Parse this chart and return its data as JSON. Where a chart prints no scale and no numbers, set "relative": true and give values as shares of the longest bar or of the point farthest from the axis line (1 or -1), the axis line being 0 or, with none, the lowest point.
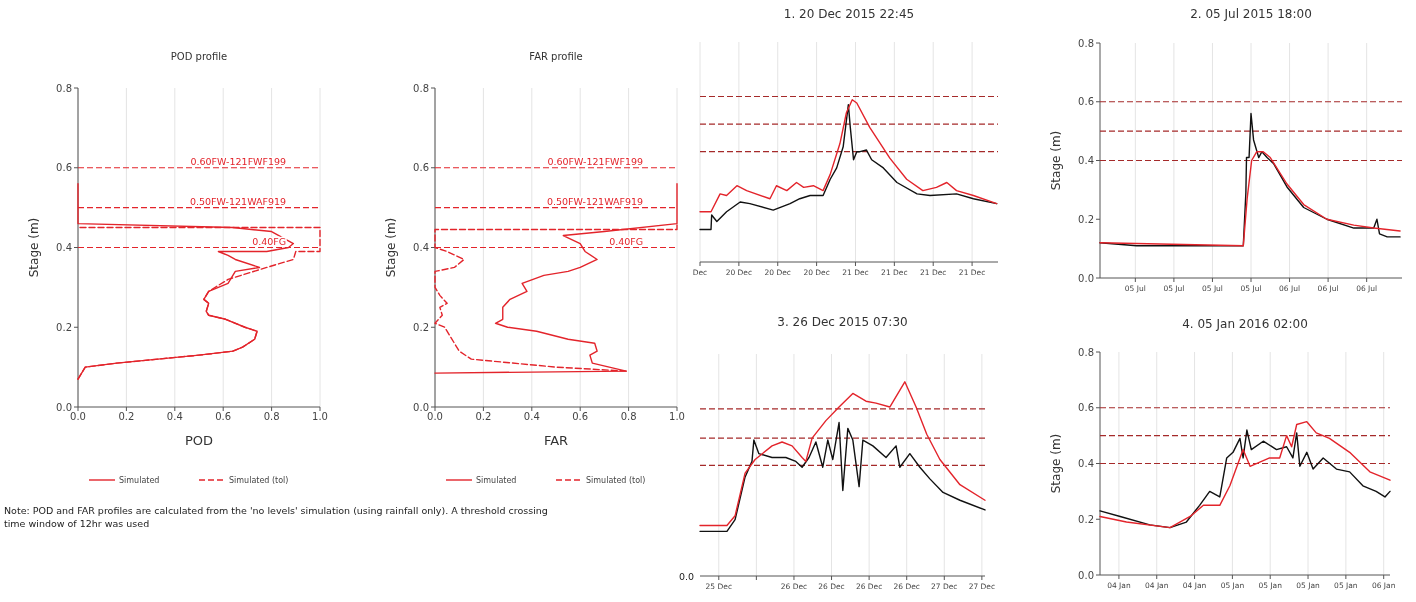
{
  "chart_data": [
    {
      "type": "line",
      "title": "POD profile",
      "xlabel": "POD",
      "ylabel": "Stage (m)",
      "xlim": [
        0,
        1
      ],
      "ylim": [
        0,
        0.8
      ],
      "xticks": [
        {
          "value": 0,
          "label": "0.0"
        },
        {
          "value": 0.2,
          "label": "0.2"
        },
        {
          "value": 0.4,
          "label": "0.4"
        },
        {
          "value": 0.6,
          "label": "0.6"
        },
        {
          "value": 0.8,
          "label": "0.8"
        },
        {
          "value": 1,
          "label": "1.0"
        }
      ],
      "yticks": [
        {
          "value": 0,
          "label": "0.0"
        },
        {
          "value": 0.2,
          "label": "0.2"
        },
        {
          "value": 0.4,
          "label": "0.4"
        },
        {
          "value": 0.6,
          "label": "0.6"
        },
        {
          "value": 0.8,
          "label": "0.8"
        }
      ],
      "grid": "x",
      "legend": "bottom",
      "ref_lines": [
        {
          "axis": "y",
          "value": 0.6,
          "label": "0.60FW-121FWF199",
          "color": "#e3242b",
          "line_style": "dashed"
        },
        {
          "axis": "y",
          "value": 0.5,
          "label": "0.50FW-121WAF919",
          "color": "#e3242b",
          "line_style": "dashed"
        },
        {
          "axis": "y",
          "value": 0.4,
          "label": "0.40FG",
          "color": "#e3242b",
          "line_style": "dashed"
        }
      ],
      "annotations": [
        "Note: POD and FAR profiles are calculated from the 'no levels' simulation (using rainfall only).  A threshold crossing time window of 12hr was used"
      ],
      "series": [
        {
          "name": "Simulated",
          "color": "#e3242b",
          "line_style": "solid",
          "x": [
            0,
            0.03,
            0.16,
            0.33,
            0.5,
            0.64,
            0.68,
            0.73,
            0.74,
            0.69,
            0.61,
            0.54,
            0.53,
            0.54,
            0.52,
            0.54,
            0.62,
            0.65,
            0.75,
            0.65,
            0.62,
            0.58,
            0.78,
            0.87,
            0.89,
            0.8,
            0.64,
            0,
            0
          ],
          "values": [
            0.07,
            0.1,
            0.11,
            0.12,
            0.13,
            0.14,
            0.15,
            0.17,
            0.19,
            0.2,
            0.22,
            0.23,
            0.24,
            0.26,
            0.27,
            0.29,
            0.31,
            0.34,
            0.35,
            0.37,
            0.38,
            0.39,
            0.39,
            0.4,
            0.41,
            0.44,
            0.45,
            0.46,
            0.56
          ]
        },
        {
          "name": "Simulated (tol)",
          "color": "#e3242b",
          "line_style": "dashed",
          "x": [
            0,
            0.03,
            0.16,
            0.33,
            0.5,
            0.64,
            0.68,
            0.73,
            0.74,
            0.69,
            0.61,
            0.54,
            0.53,
            0.54,
            0.52,
            0.54,
            0.62,
            0.78,
            0.89,
            0.9,
            1,
            1,
            0
          ],
          "values": [
            0.07,
            0.1,
            0.11,
            0.12,
            0.13,
            0.14,
            0.15,
            0.17,
            0.19,
            0.2,
            0.22,
            0.23,
            0.24,
            0.26,
            0.27,
            0.29,
            0.32,
            0.35,
            0.37,
            0.39,
            0.39,
            0.45,
            0.45
          ]
        }
      ]
    },
    {
      "type": "line",
      "title": "FAR profile",
      "xlabel": "FAR",
      "ylabel": "Stage (m)",
      "xlim": [
        0,
        1
      ],
      "ylim": [
        0,
        0.8
      ],
      "xticks": [
        {
          "value": 0,
          "label": "0.0"
        },
        {
          "value": 0.2,
          "label": "0.2"
        },
        {
          "value": 0.4,
          "label": "0.4"
        },
        {
          "value": 0.6,
          "label": "0.6"
        },
        {
          "value": 0.8,
          "label": "0.8"
        },
        {
          "value": 1,
          "label": "1.0"
        }
      ],
      "yticks": [
        {
          "value": 0,
          "label": "0.0"
        },
        {
          "value": 0.2,
          "label": "0.2"
        },
        {
          "value": 0.4,
          "label": "0.4"
        },
        {
          "value": 0.6,
          "label": "0.6"
        },
        {
          "value": 0.8,
          "label": "0.8"
        }
      ],
      "grid": "x",
      "legend": "bottom",
      "ref_lines": [
        {
          "axis": "y",
          "value": 0.6,
          "label": "0.60FW-121FWF199",
          "color": "#e3242b",
          "line_style": "dashed"
        },
        {
          "axis": "y",
          "value": 0.5,
          "label": "0.50FW-121WAF919",
          "color": "#e3242b",
          "line_style": "dashed"
        },
        {
          "axis": "y",
          "value": 0.4,
          "label": "0.40FG",
          "color": "#e3242b",
          "line_style": "dashed"
        }
      ],
      "series": [
        {
          "name": "Simulated",
          "color": "#e3242b",
          "line_style": "solid",
          "x": [
            0,
            0.79,
            0.72,
            0.65,
            0.64,
            0.67,
            0.66,
            0.55,
            0.42,
            0.3,
            0.25,
            0.28,
            0.28,
            0.31,
            0.38,
            0.36,
            0.45,
            0.55,
            0.6,
            0.67,
            0.62,
            0.6,
            0.53,
            0.7,
            1,
            1
          ],
          "values": [
            0.085,
            0.09,
            0.1,
            0.11,
            0.13,
            0.14,
            0.16,
            0.17,
            0.19,
            0.2,
            0.21,
            0.22,
            0.25,
            0.27,
            0.29,
            0.31,
            0.33,
            0.34,
            0.35,
            0.37,
            0.39,
            0.41,
            0.43,
            0.44,
            0.46,
            0.56
          ]
        },
        {
          "name": "Simulated (tol)",
          "color": "#e3242b",
          "line_style": "dashed",
          "x": [
            0.79,
            0.5,
            0.15,
            0.1,
            0.04,
            0,
            0.03,
            0.02,
            0.05,
            0.02,
            0,
            0,
            0.08,
            0.12,
            0.05,
            0,
            0,
            1,
            1
          ],
          "values": [
            0.09,
            0.1,
            0.12,
            0.14,
            0.2,
            0.21,
            0.23,
            0.25,
            0.26,
            0.28,
            0.3,
            0.34,
            0.35,
            0.37,
            0.39,
            0.4,
            0.445,
            0.445,
            0.46
          ]
        }
      ]
    },
    {
      "type": "line",
      "title": "1. 20 Dec 2015 22:45",
      "relative": true,
      "xlim": [
        "2015-12-20T00:00",
        "2015-12-21T22:00"
      ],
      "xticks": [
        {
          "value": "2015-12-20T00:00",
          "label": "Dec"
        },
        {
          "value": "2015-12-20T06:00",
          "label": "20 Dec"
        },
        {
          "value": "2015-12-20T12:00",
          "label": "20 Dec"
        },
        {
          "value": "2015-12-20T18:00",
          "label": "20 Dec"
        },
        {
          "value": "2015-12-21T00:00",
          "label": "21 Dec"
        },
        {
          "value": "2015-12-21T06:00",
          "label": "21 Dec"
        },
        {
          "value": "2015-12-21T12:00",
          "label": "21 Dec"
        },
        {
          "value": "2015-12-21T18:00",
          "label": "21 Dec"
        }
      ],
      "grid": "x",
      "ref_lines": [
        {
          "axis": "y",
          "value": 1.02,
          "color": "#a52a2a",
          "line_style": "dashed"
        },
        {
          "axis": "y",
          "value": 0.85,
          "color": "#a52a2a",
          "line_style": "dashed"
        },
        {
          "axis": "y",
          "value": 0.68,
          "color": "#a52a2a",
          "line_style": "dashed"
        }
      ],
      "series": [
        {
          "color": "#111111",
          "x": [
            "2015-12-20T00:00",
            "2015-12-20T01:42",
            "2015-12-20T01:48",
            "2015-12-20T02:36",
            "2015-12-20T04:06",
            "2015-12-20T06:12",
            "2015-12-20T07:42",
            "2015-12-20T11:18",
            "2015-12-20T13:54",
            "2015-12-20T15:24",
            "2015-12-20T17:00",
            "2015-12-20T19:00",
            "2015-12-20T20:06",
            "2015-12-20T21:06",
            "2015-12-20T22:06",
            "2015-12-20T22:54",
            "2015-12-20T23:12",
            "2015-12-20T23:42",
            "2015-12-21T00:12",
            "2015-12-21T00:42",
            "2015-12-21T01:42",
            "2015-12-21T02:30",
            "2015-12-21T04:18",
            "2015-12-21T06:24",
            "2015-12-21T09:30",
            "2015-12-21T11:30",
            "2015-12-21T15:36",
            "2015-12-21T18:12",
            "2015-12-21T21:48"
          ],
          "values": [
            0.2,
            0.2,
            0.29,
            0.25,
            0.31,
            0.37,
            0.36,
            0.32,
            0.36,
            0.39,
            0.41,
            0.41,
            0.51,
            0.58,
            0.71,
            0.97,
            0.83,
            0.63,
            0.68,
            0.68,
            0.69,
            0.63,
            0.58,
            0.49,
            0.42,
            0.41,
            0.42,
            0.39,
            0.36
          ]
        },
        {
          "color": "#e3242b",
          "x": [
            "2015-12-20T00:00",
            "2015-12-20T01:42",
            "2015-12-20T03:06",
            "2015-12-20T04:06",
            "2015-12-20T05:42",
            "2015-12-20T07:12",
            "2015-12-20T10:48",
            "2015-12-20T11:48",
            "2015-12-20T13:24",
            "2015-12-20T14:54",
            "2015-12-20T16:00",
            "2015-12-20T17:30",
            "2015-12-20T19:00",
            "2015-12-20T20:06",
            "2015-12-20T21:36",
            "2015-12-20T22:36",
            "2015-12-20T23:30",
            "2015-12-21T00:12",
            "2015-12-21T02:12",
            "2015-12-21T05:18",
            "2015-12-21T07:54",
            "2015-12-21T10:24",
            "2015-12-21T12:30",
            "2015-12-21T14:06",
            "2015-12-21T15:36",
            "2015-12-21T18:12",
            "2015-12-21T21:48"
          ],
          "values": [
            0.31,
            0.31,
            0.42,
            0.41,
            0.47,
            0.44,
            0.39,
            0.47,
            0.44,
            0.49,
            0.46,
            0.47,
            0.44,
            0.54,
            0.73,
            0.92,
            1,
            0.98,
            0.83,
            0.64,
            0.51,
            0.44,
            0.46,
            0.49,
            0.44,
            0.41,
            0.36
          ]
        }
      ]
    },
    {
      "type": "line",
      "title": "2. 05 Jul 2015 18:00",
      "ylabel": "Stage (m)",
      "xlim": [
        "2015-07-04T18:30",
        "2015-07-06T17:30"
      ],
      "ylim": [
        0,
        0.8
      ],
      "xticks": [
        {
          "value": "2015-07-05T00:00",
          "label": "05 Jul"
        },
        {
          "value": "2015-07-05T06:00",
          "label": "05 Jul"
        },
        {
          "value": "2015-07-05T12:00",
          "label": "05 Jul"
        },
        {
          "value": "2015-07-05T18:00",
          "label": "05 Jul"
        },
        {
          "value": "2015-07-06T00:00",
          "label": "06 Jul"
        },
        {
          "value": "2015-07-06T06:00",
          "label": "06 Jul"
        },
        {
          "value": "2015-07-06T12:00",
          "label": "06 Jul"
        }
      ],
      "yticks": [
        {
          "value": 0,
          "label": "0.0"
        },
        {
          "value": 0.2,
          "label": "0.2"
        },
        {
          "value": 0.4,
          "label": "0.4"
        },
        {
          "value": 0.6,
          "label": "0.6"
        },
        {
          "value": 0.8,
          "label": "0.8"
        }
      ],
      "grid": "x",
      "ref_lines": [
        {
          "axis": "y",
          "value": 0.6,
          "color": "#a52a2a",
          "line_style": "dashed"
        },
        {
          "axis": "y",
          "value": 0.5,
          "color": "#a52a2a",
          "line_style": "dashed"
        },
        {
          "axis": "y",
          "value": 0.4,
          "color": "#a52a2a",
          "line_style": "dashed"
        }
      ],
      "series": [
        {
          "color": "#111111",
          "x": [
            "2015-07-04T18:30",
            "2015-07-05T00:12",
            "2015-07-05T16:48",
            "2015-07-05T17:12",
            "2015-07-05T17:18",
            "2015-07-05T17:42",
            "2015-07-05T18:00",
            "2015-07-05T18:24",
            "2015-07-05T19:12",
            "2015-07-05T19:42",
            "2015-07-05T20:30",
            "2015-07-05T21:30",
            "2015-07-05T23:36",
            "2015-07-06T02:12",
            "2015-07-06T05:48",
            "2015-07-06T10:00",
            "2015-07-06T13:06",
            "2015-07-06T13:36",
            "2015-07-06T14:00",
            "2015-07-06T15:12",
            "2015-07-06T17:12"
          ],
          "values": [
            0.12,
            0.11,
            0.11,
            0.29,
            0.41,
            0.41,
            0.56,
            0.47,
            0.41,
            0.43,
            0.41,
            0.39,
            0.31,
            0.24,
            0.2,
            0.17,
            0.17,
            0.2,
            0.15,
            0.14,
            0.14
          ]
        },
        {
          "color": "#e3242b",
          "x": [
            "2015-07-04T18:30",
            "2015-07-05T16:48",
            "2015-07-05T17:24",
            "2015-07-05T18:06",
            "2015-07-05T18:54",
            "2015-07-05T19:54",
            "2015-07-05T21:00",
            "2015-07-05T23:36",
            "2015-07-06T02:12",
            "2015-07-06T05:48",
            "2015-07-06T10:00",
            "2015-07-06T13:06",
            "2015-07-06T17:12"
          ],
          "values": [
            0.12,
            0.11,
            0.27,
            0.4,
            0.43,
            0.43,
            0.41,
            0.32,
            0.25,
            0.2,
            0.18,
            0.17,
            0.16
          ]
        }
      ]
    },
    {
      "type": "line",
      "title": "3. 26 Dec 2015 07:30",
      "relative": true,
      "xlim": [
        "2015-12-25T09:00",
        "2015-12-27T06:30"
      ],
      "xticks": [
        {
          "value": "2015-12-25T12:00",
          "label": "25 Dec"
        },
        {
          "value": "2015-12-25T18:00",
          "label": null
        },
        {
          "value": "2015-12-26T00:00",
          "label": "26 Dec"
        },
        {
          "value": "2015-12-26T06:00",
          "label": "26 Dec"
        },
        {
          "value": "2015-12-26T12:00",
          "label": "26 Dec"
        },
        {
          "value": "2015-12-26T18:00",
          "label": "26 Dec"
        },
        {
          "value": "2015-12-27T00:00",
          "label": "27 Dec"
        },
        {
          "value": "2015-12-27T06:00",
          "label": "27 Dec"
        }
      ],
      "grid": "x",
      "annotations": [
        "0.0"
      ],
      "ref_lines": [
        {
          "axis": "y",
          "value": 0.86,
          "color": "#a52a2a",
          "line_style": "dashed"
        },
        {
          "axis": "y",
          "value": 0.71,
          "color": "#a52a2a",
          "line_style": "dashed"
        },
        {
          "axis": "y",
          "value": 0.57,
          "color": "#a52a2a",
          "line_style": "dashed"
        }
      ],
      "series": [
        {
          "color": "#111111",
          "x": [
            "2015-12-25T09:00",
            "2015-12-25T13:18",
            "2015-12-25T14:36",
            "2015-12-25T16:12",
            "2015-12-25T17:18",
            "2015-12-25T17:36",
            "2015-12-25T18:24",
            "2015-12-25T20:30",
            "2015-12-25T22:42",
            "2015-12-26T00:18",
            "2015-12-26T01:18",
            "2015-12-26T02:24",
            "2015-12-26T03:30",
            "2015-12-26T04:36",
            "2015-12-26T05:24",
            "2015-12-26T06:12",
            "2015-12-26T07:12",
            "2015-12-26T07:48",
            "2015-12-26T08:36",
            "2015-12-26T09:24",
            "2015-12-26T10:24",
            "2015-12-26T11:00",
            "2015-12-26T12:36",
            "2015-12-26T14:42",
            "2015-12-26T16:18",
            "2015-12-26T16:54",
            "2015-12-26T18:30",
            "2015-12-26T20:06",
            "2015-12-26T21:42",
            "2015-12-26T23:48",
            "2015-12-27T02:30",
            "2015-12-27T06:30"
          ],
          "values": [
            0.23,
            0.23,
            0.29,
            0.51,
            0.59,
            0.7,
            0.63,
            0.61,
            0.61,
            0.59,
            0.56,
            0.61,
            0.69,
            0.56,
            0.7,
            0.6,
            0.79,
            0.44,
            0.76,
            0.7,
            0.46,
            0.7,
            0.67,
            0.61,
            0.67,
            0.56,
            0.63,
            0.56,
            0.5,
            0.43,
            0.39,
            0.34
          ]
        },
        {
          "color": "#e3242b",
          "x": [
            "2015-12-25T09:00",
            "2015-12-25T13:18",
            "2015-12-25T14:36",
            "2015-12-25T16:12",
            "2015-12-25T17:48",
            "2015-12-25T20:30",
            "2015-12-25T22:06",
            "2015-12-25T23:42",
            "2015-12-26T01:18",
            "2015-12-26T01:54",
            "2015-12-26T02:54",
            "2015-12-26T05:06",
            "2015-12-26T07:12",
            "2015-12-26T09:24",
            "2015-12-26T11:30",
            "2015-12-26T13:06",
            "2015-12-26T15:18",
            "2015-12-26T17:42",
            "2015-12-26T19:30",
            "2015-12-26T21:12",
            "2015-12-26T23:18",
            "2015-12-27T02:30",
            "2015-12-27T06:30"
          ],
          "values": [
            0.26,
            0.26,
            0.31,
            0.53,
            0.6,
            0.67,
            0.69,
            0.67,
            0.61,
            0.59,
            0.71,
            0.8,
            0.87,
            0.94,
            0.9,
            0.89,
            0.87,
            1,
            0.87,
            0.73,
            0.6,
            0.47,
            0.39
          ]
        }
      ]
    },
    {
      "type": "line",
      "title": "4. 05 Jan 2016 02:00",
      "ylabel": "Stage (m)",
      "xlim": [
        "2016-01-04T03:00",
        "2016-01-06T01:00"
      ],
      "ylim": [
        0,
        0.8
      ],
      "xticks": [
        {
          "value": "2016-01-04T06:00",
          "label": "04 Jan"
        },
        {
          "value": "2016-01-04T12:00",
          "label": "04 Jan"
        },
        {
          "value": "2016-01-04T18:00",
          "label": "04 Jan"
        },
        {
          "value": "2016-01-05T00:00",
          "label": "05 Jan"
        },
        {
          "value": "2016-01-05T06:00",
          "label": "05 Jan"
        },
        {
          "value": "2016-01-05T12:00",
          "label": "05 Jan"
        },
        {
          "value": "2016-01-05T18:00",
          "label": "05 Jan"
        },
        {
          "value": "2016-01-06T00:00",
          "label": "06 Jan"
        }
      ],
      "yticks": [
        {
          "value": 0,
          "label": "0.0"
        },
        {
          "value": 0.2,
          "label": "0.2"
        },
        {
          "value": 0.4,
          "label": "0.4"
        },
        {
          "value": 0.6,
          "label": "0.6"
        },
        {
          "value": 0.8,
          "label": "0.8"
        }
      ],
      "grid": "x",
      "ref_lines": [
        {
          "axis": "y",
          "value": 0.6,
          "color": "#a52a2a",
          "line_style": "dashed"
        },
        {
          "axis": "y",
          "value": 0.5,
          "color": "#a52a2a",
          "line_style": "dashed"
        },
        {
          "axis": "y",
          "value": 0.4,
          "color": "#a52a2a",
          "line_style": "dashed"
        }
      ],
      "series": [
        {
          "color": "#111111",
          "x": [
            "2016-01-04T03:00",
            "2016-01-04T06:12",
            "2016-01-04T10:54",
            "2016-01-04T14:06",
            "2016-01-04T16:42",
            "2016-01-04T18:48",
            "2016-01-04T20:24",
            "2016-01-04T22:00",
            "2016-01-04T23:06",
            "2016-01-05T00:06",
            "2016-01-05T01:12",
            "2016-01-05T01:42",
            "2016-01-05T02:18",
            "2016-01-05T03:00",
            "2016-01-05T04:54",
            "2016-01-05T07:00",
            "2016-01-05T08:36",
            "2016-01-05T09:36",
            "2016-01-05T10:12",
            "2016-01-05T10:42",
            "2016-01-05T11:48",
            "2016-01-05T12:48",
            "2016-01-05T14:24",
            "2016-01-05T16:30",
            "2016-01-05T18:36",
            "2016-01-05T20:42",
            "2016-01-05T22:48",
            "2016-01-06T00:12",
            "2016-01-06T01:00"
          ],
          "values": [
            0.23,
            0.21,
            0.18,
            0.17,
            0.19,
            0.25,
            0.3,
            0.28,
            0.42,
            0.44,
            0.49,
            0.42,
            0.52,
            0.45,
            0.48,
            0.45,
            0.46,
            0.42,
            0.51,
            0.39,
            0.44,
            0.38,
            0.42,
            0.38,
            0.37,
            0.32,
            0.3,
            0.28,
            0.3
          ]
        },
        {
          "color": "#e3242b",
          "x": [
            "2016-01-04T03:00",
            "2016-01-04T07:12",
            "2016-01-04T14:06",
            "2016-01-04T17:18",
            "2016-01-04T19:24",
            "2016-01-04T22:00",
            "2016-01-04T23:36",
            "2016-01-05T01:42",
            "2016-01-05T02:48",
            "2016-01-05T05:54",
            "2016-01-05T07:30",
            "2016-01-05T08:36",
            "2016-01-05T09:24",
            "2016-01-05T10:12",
            "2016-01-05T11:48",
            "2016-01-05T13:18",
            "2016-01-05T15:24",
            "2016-01-05T18:36",
            "2016-01-05T21:48",
            "2016-01-06T01:00"
          ],
          "values": [
            0.21,
            0.19,
            0.17,
            0.21,
            0.25,
            0.25,
            0.32,
            0.45,
            0.39,
            0.42,
            0.42,
            0.5,
            0.46,
            0.54,
            0.55,
            0.51,
            0.49,
            0.44,
            0.37,
            0.34
          ]
        }
      ]
    }
  ]
}
